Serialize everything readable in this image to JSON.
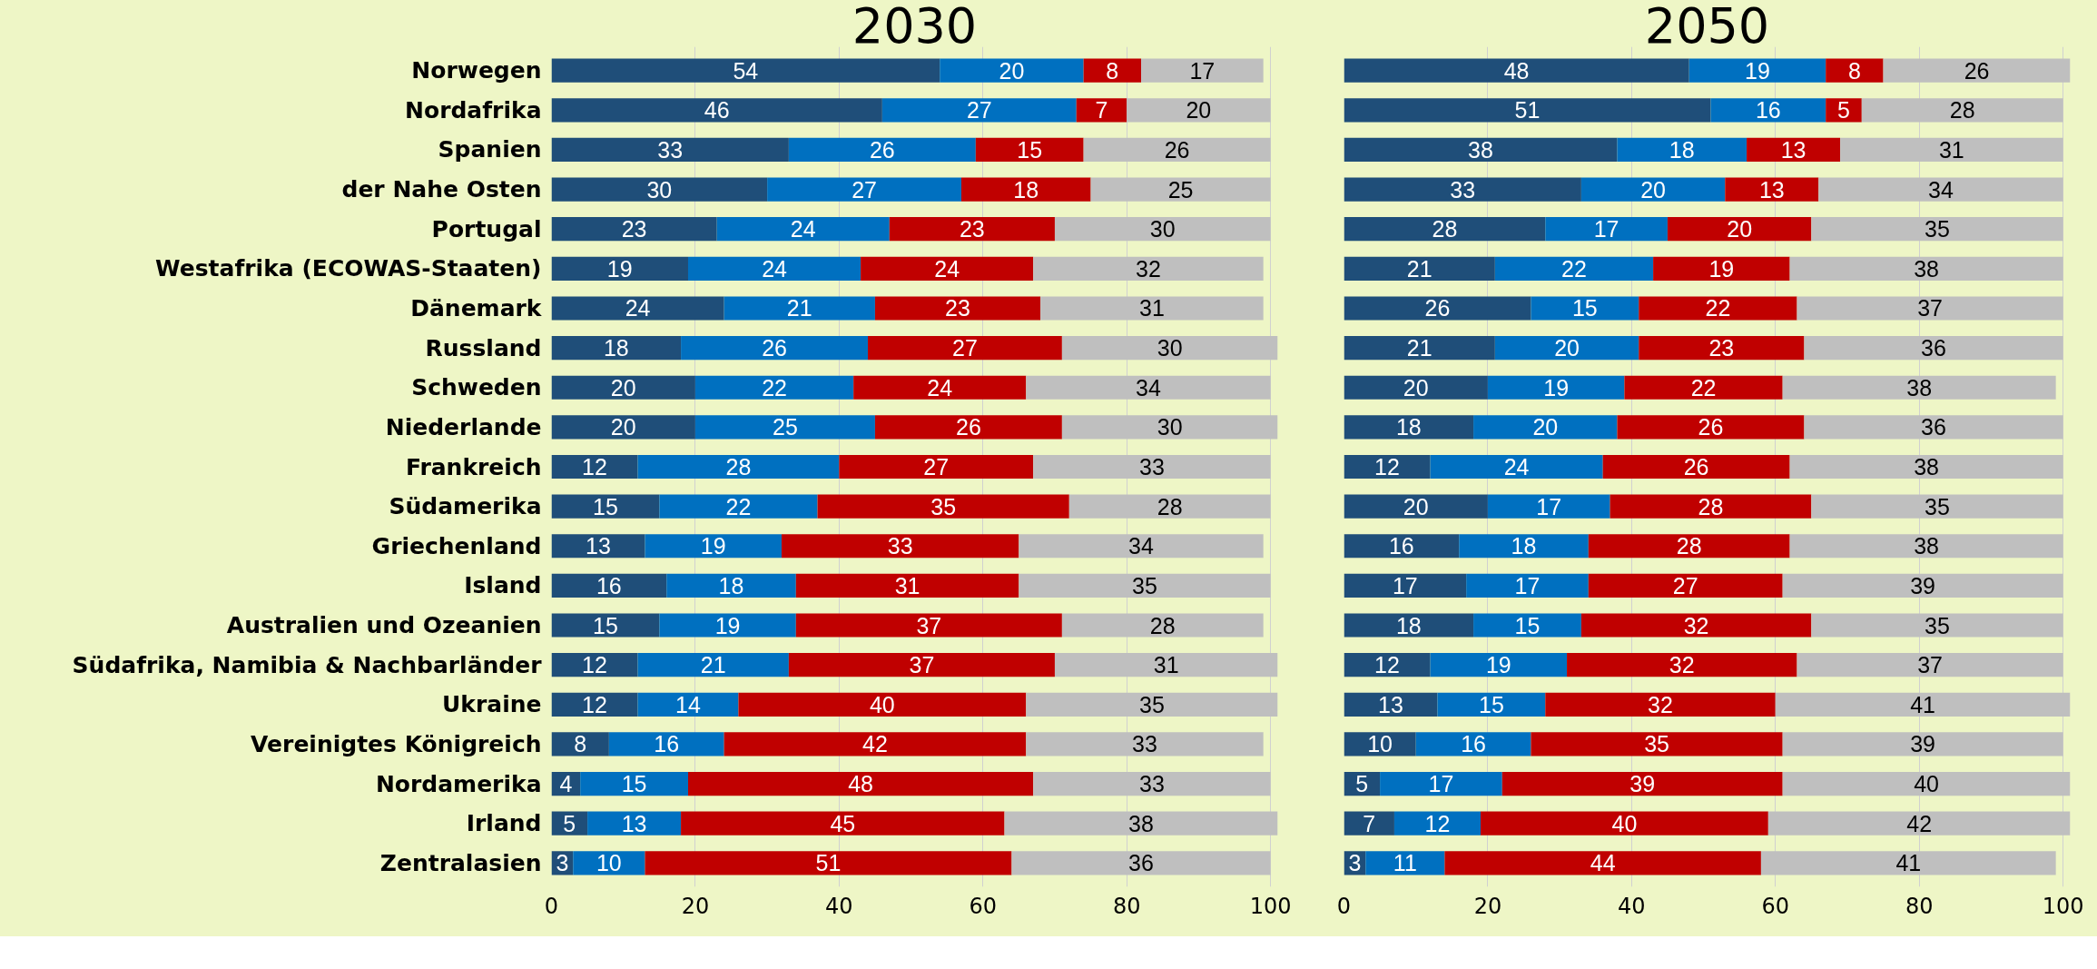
{
  "chart_data": [
    {
      "type": "bar",
      "title": "2030",
      "orientation": "horizontal",
      "stacked": true,
      "data_labels": true,
      "grid": "x",
      "xlim": [
        0,
        101
      ],
      "xticks": [
        0,
        20,
        40,
        60,
        80,
        100
      ],
      "categories": [
        "Norwegen",
        "Nordafrika",
        "Spanien",
        "der Nahe Osten",
        "Portugal",
        "Westafrika (ECOWAS-Staaten)",
        "Dänemark",
        "Russland",
        "Schweden",
        "Niederlande",
        "Frankreich",
        "Südamerika",
        "Griechenland",
        "Island",
        "Australien und Ozeanien",
        "Südafrika, Namibia & Nachbarländer",
        "Ukraine",
        "Vereinigtes Königreich",
        "Nordamerika",
        "Irland",
        "Zentralasien"
      ],
      "series": [
        {
          "color": "#1f4e79",
          "values": [
            54,
            46,
            33,
            30,
            23,
            19,
            24,
            18,
            20,
            20,
            12,
            15,
            13,
            16,
            15,
            12,
            12,
            8,
            4,
            5,
            3
          ]
        },
        {
          "color": "#0070c0",
          "values": [
            20,
            27,
            26,
            27,
            24,
            24,
            21,
            26,
            22,
            25,
            28,
            22,
            19,
            18,
            19,
            21,
            14,
            16,
            15,
            13,
            10
          ]
        },
        {
          "color": "#c00000",
          "values": [
            8,
            7,
            15,
            18,
            23,
            24,
            23,
            27,
            24,
            26,
            27,
            35,
            33,
            31,
            37,
            37,
            40,
            42,
            48,
            45,
            51
          ]
        },
        {
          "color": "#bfbfbf",
          "values": [
            17,
            20,
            26,
            25,
            30,
            32,
            31,
            30,
            34,
            30,
            33,
            28,
            34,
            35,
            28,
            31,
            35,
            33,
            33,
            38,
            36
          ]
        }
      ]
    },
    {
      "type": "bar",
      "title": "2050",
      "orientation": "horizontal",
      "stacked": true,
      "data_labels": true,
      "grid": "x",
      "tick_labels": "x",
      "xlim": [
        0,
        101
      ],
      "xticks": [
        0,
        20,
        40,
        60,
        80,
        100
      ],
      "categories": [
        null,
        null,
        null,
        null,
        null,
        null,
        null,
        null,
        null,
        null,
        null,
        null,
        null,
        null,
        null,
        null,
        null,
        null,
        null,
        null,
        null
      ],
      "series": [
        {
          "color": "#1f4e79",
          "values": [
            48,
            51,
            38,
            33,
            28,
            21,
            26,
            21,
            20,
            18,
            12,
            20,
            16,
            17,
            18,
            12,
            13,
            10,
            5,
            7,
            3
          ]
        },
        {
          "color": "#0070c0",
          "values": [
            19,
            16,
            18,
            20,
            17,
            22,
            15,
            20,
            19,
            20,
            24,
            17,
            18,
            17,
            15,
            19,
            15,
            16,
            17,
            12,
            11
          ]
        },
        {
          "color": "#c00000",
          "values": [
            8,
            5,
            13,
            13,
            20,
            19,
            22,
            23,
            22,
            26,
            26,
            28,
            28,
            27,
            32,
            32,
            32,
            35,
            39,
            40,
            44
          ]
        },
        {
          "color": "#bfbfbf",
          "values": [
            26,
            28,
            31,
            34,
            35,
            38,
            37,
            36,
            38,
            36,
            38,
            35,
            38,
            39,
            35,
            37,
            41,
            39,
            40,
            42,
            41
          ]
        }
      ]
    }
  ]
}
